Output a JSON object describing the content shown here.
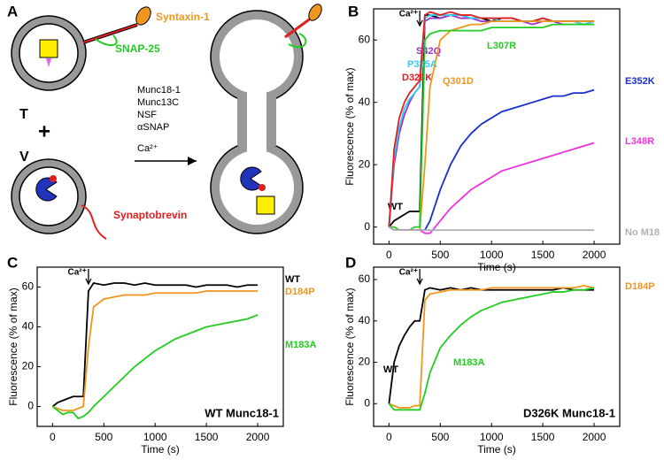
{
  "diagram": {
    "panel_label": "A",
    "syntaxin": "Syntaxin-1",
    "snap": "SNAP-25",
    "t": "T",
    "plus": "+",
    "v": "V",
    "synaptobrevin": "Synaptobrevin",
    "reagents": [
      "Munc18-1",
      "Munc13C",
      "NSF",
      "αSNAP",
      "Ca²⁺"
    ]
  },
  "chart_data": [
    {
      "type": "line",
      "panel_label": "B",
      "y_label": "Fluorescence (% of max)",
      "x_label": "Time (s)",
      "annotation": "Ca²⁺",
      "x": [
        0,
        50,
        100,
        150,
        200,
        250,
        300,
        350,
        400,
        500,
        600,
        700,
        800,
        900,
        1000,
        1100,
        1200,
        1300,
        1400,
        1500,
        1600,
        1700,
        1800,
        1900,
        2000
      ],
      "xlim": [
        -150,
        2250
      ],
      "xticks": [
        0,
        500,
        1000,
        1500,
        2000
      ],
      "ylim": [
        -5.5,
        70
      ],
      "yticks": [
        0,
        20,
        40,
        60
      ],
      "series": [
        {
          "name": "WT",
          "color": "#000000",
          "values": [
            0,
            2,
            3,
            4,
            5,
            5,
            5,
            68,
            68,
            67,
            68,
            68,
            67,
            67,
            66,
            67,
            67,
            66,
            66,
            67,
            66,
            66,
            66,
            66,
            66
          ]
        },
        {
          "name": "S42Q",
          "color": "#9933cc",
          "values": [
            0,
            20,
            30,
            36,
            40,
            43,
            45,
            66,
            67,
            67,
            68,
            67,
            67,
            66,
            66,
            66,
            66,
            66,
            65,
            66,
            66,
            65,
            65,
            65,
            65
          ]
        },
        {
          "name": "P335A",
          "color": "#33ccee",
          "values": [
            0,
            22,
            32,
            38,
            41,
            43,
            45,
            67,
            68,
            68,
            68,
            68,
            67,
            67,
            67,
            66,
            66,
            66,
            66,
            66,
            66,
            66,
            66,
            65,
            66
          ]
        },
        {
          "name": "D326K",
          "color": "#e02020",
          "values": [
            0,
            25,
            35,
            40,
            43,
            45,
            47,
            68,
            69,
            68,
            69,
            68,
            68,
            67,
            67,
            67,
            67,
            66,
            66,
            67,
            66,
            66,
            66,
            66,
            66
          ]
        },
        {
          "name": "Q301D",
          "color": "#f0951e",
          "values": [
            0,
            0,
            -1,
            -1,
            -1,
            -1,
            -1,
            20,
            45,
            60,
            63,
            64,
            65,
            65,
            66,
            66,
            66,
            66,
            66,
            66,
            66,
            66,
            66,
            66,
            66
          ]
        },
        {
          "name": "L307R",
          "color": "#22cc22",
          "values": [
            0,
            0,
            -1,
            -1,
            -1,
            0,
            0,
            60,
            62,
            63,
            63,
            63,
            63,
            63,
            64,
            64,
            64,
            64,
            64,
            64,
            65,
            65,
            65,
            65,
            65
          ]
        },
        {
          "name": "E352K",
          "color": "#1a2ed0",
          "values": [
            0,
            -1,
            -1,
            -1,
            -1,
            -1,
            -1,
            -1,
            2,
            12,
            20,
            26,
            30,
            33,
            35,
            37,
            38,
            39,
            40,
            41,
            42,
            42,
            43,
            43,
            44
          ]
        },
        {
          "name": "L348R",
          "color": "#ee33dd",
          "values": [
            0,
            -1,
            -1,
            -1,
            -1,
            -1,
            -1,
            -2,
            -2,
            2,
            6,
            9,
            12,
            14,
            16,
            18,
            19,
            20,
            21,
            22,
            23,
            24,
            25,
            26,
            27
          ]
        },
        {
          "name": "No M18",
          "color": "#b0b0b0",
          "values": [
            0,
            -1,
            -1,
            -1,
            -1,
            -1,
            -1,
            -1,
            -1,
            -1,
            -1,
            -1,
            -1,
            -1,
            -1,
            -1,
            -1,
            -1,
            -1,
            -1,
            -1,
            -1,
            -1,
            -1,
            -1
          ]
        }
      ]
    },
    {
      "type": "line",
      "panel_label": "C",
      "y_label": "Fluorescence (% of max)",
      "x_label": "Time (s)",
      "annotation": "Ca²⁺",
      "subtitle": "WT Munc18-1",
      "x": [
        0,
        50,
        100,
        150,
        200,
        250,
        300,
        350,
        400,
        500,
        600,
        700,
        800,
        900,
        1000,
        1100,
        1200,
        1300,
        1400,
        1500,
        1600,
        1700,
        1800,
        1900,
        2000
      ],
      "xlim": [
        -150,
        2250
      ],
      "xticks": [
        0,
        500,
        1000,
        1500,
        2000
      ],
      "ylim": [
        -10,
        70
      ],
      "yticks": [
        0,
        20,
        40,
        60
      ],
      "series": [
        {
          "name": "WT",
          "color": "#000000",
          "values": [
            0,
            2,
            3,
            4,
            5,
            5,
            5,
            58,
            62,
            61,
            62,
            62,
            61,
            62,
            61,
            61,
            61,
            61,
            60,
            61,
            61,
            61,
            60,
            61,
            61
          ]
        },
        {
          "name": "D184P",
          "color": "#f0951e",
          "values": [
            0,
            -1,
            -2,
            -2,
            -2,
            -1,
            0,
            30,
            50,
            54,
            55,
            56,
            56,
            56,
            57,
            57,
            57,
            57,
            57,
            58,
            58,
            58,
            58,
            58,
            58
          ]
        },
        {
          "name": "M183A",
          "color": "#22cc22",
          "values": [
            0,
            -2,
            -4,
            -3,
            -3,
            -6,
            -5,
            -3,
            0,
            5,
            10,
            15,
            20,
            24,
            28,
            31,
            34,
            36,
            38,
            40,
            41,
            42,
            43,
            44,
            46
          ]
        }
      ]
    },
    {
      "type": "line",
      "panel_label": "D",
      "y_label": "Fluorescence (% of max)",
      "x_label": "Time (s)",
      "annotation": "Ca²⁺",
      "subtitle": "D326K Munc18-1",
      "x": [
        0,
        50,
        100,
        150,
        200,
        250,
        300,
        350,
        400,
        500,
        600,
        700,
        800,
        900,
        1000,
        1100,
        1200,
        1300,
        1400,
        1500,
        1600,
        1700,
        1800,
        1900,
        2000
      ],
      "xlim": [
        -150,
        2250
      ],
      "xticks": [
        0,
        500,
        1000,
        1500,
        2000
      ],
      "ylim": [
        -11,
        66
      ],
      "yticks": [
        0,
        20,
        40,
        60
      ],
      "series": [
        {
          "name": "WT",
          "color": "#000000",
          "values": [
            0,
            20,
            28,
            33,
            37,
            40,
            40,
            55,
            56,
            55,
            56,
            55,
            56,
            55,
            55,
            55,
            55,
            55,
            55,
            55,
            55,
            56,
            55,
            55,
            55
          ]
        },
        {
          "name": "D184P",
          "color": "#f0951e",
          "values": [
            0,
            -1,
            -2,
            -2,
            -2,
            -1,
            -1,
            50,
            53,
            54,
            55,
            55,
            55,
            55,
            56,
            56,
            56,
            56,
            56,
            56,
            56,
            56,
            56,
            57,
            56
          ]
        },
        {
          "name": "M183A",
          "color": "#22cc22",
          "values": [
            0,
            -3,
            -3,
            -3,
            -3,
            -3,
            -3,
            5,
            15,
            27,
            33,
            38,
            42,
            45,
            47,
            49,
            50,
            51,
            52,
            53,
            54,
            54,
            55,
            55,
            56
          ]
        }
      ]
    }
  ]
}
